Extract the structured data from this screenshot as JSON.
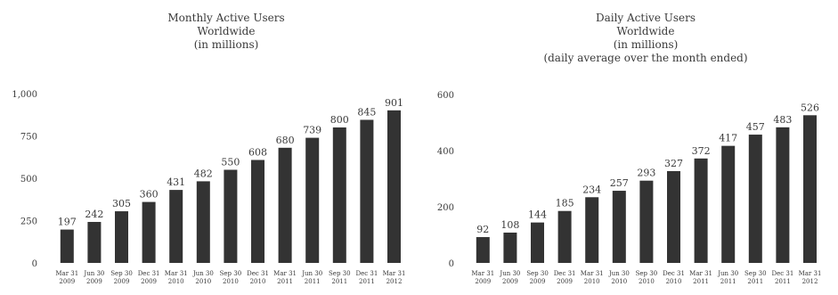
{
  "chart_data": [
    {
      "type": "bar",
      "title": [
        "Monthly Active Users",
        "Worldwide",
        "(in millions)"
      ],
      "categories": [
        [
          "Mar 31",
          "2009"
        ],
        [
          "Jun 30",
          "2009"
        ],
        [
          "Sep 30",
          "2009"
        ],
        [
          "Dec 31",
          "2009"
        ],
        [
          "Mar 31",
          "2010"
        ],
        [
          "Jun 30",
          "2010"
        ],
        [
          "Sep 30",
          "2010"
        ],
        [
          "Dec 31",
          "2010"
        ],
        [
          "Mar 31",
          "2011"
        ],
        [
          "Jun 30",
          "2011"
        ],
        [
          "Sep 30",
          "2011"
        ],
        [
          "Dec 31",
          "2011"
        ],
        [
          "Mar 31",
          "2012"
        ]
      ],
      "values": [
        197,
        242,
        305,
        360,
        431,
        482,
        550,
        608,
        680,
        739,
        800,
        845,
        901
      ],
      "value_labels": [
        "197",
        "242",
        "305",
        "360",
        "431",
        "482",
        "550",
        "608",
        "680",
        "739",
        "800",
        "845",
        "901"
      ],
      "yticks": [
        0,
        250,
        500,
        750,
        1000
      ],
      "ytick_labels": [
        "0",
        "250",
        "500",
        "750",
        "1,000"
      ],
      "ylim": [
        0,
        1000
      ],
      "bar_color": "#333333"
    },
    {
      "type": "bar",
      "title": [
        "Daily Active Users",
        "Worldwide",
        "(in millions)",
        "(daily average over the month ended)"
      ],
      "categories": [
        [
          "Mar 31",
          "2009"
        ],
        [
          "Jun 30",
          "2009"
        ],
        [
          "Sep 30",
          "2009"
        ],
        [
          "Dec 31",
          "2009"
        ],
        [
          "Mar 31",
          "2010"
        ],
        [
          "Jun 30",
          "2010"
        ],
        [
          "Sep 30",
          "2010"
        ],
        [
          "Dec 31",
          "2010"
        ],
        [
          "Mar 31",
          "2011"
        ],
        [
          "Jun 30",
          "2011"
        ],
        [
          "Sep 30",
          "2011"
        ],
        [
          "Dec 31",
          "2011"
        ],
        [
          "Mar 31",
          "2012"
        ]
      ],
      "values": [
        92,
        108,
        144,
        185,
        234,
        257,
        293,
        327,
        372,
        417,
        457,
        483,
        526
      ],
      "value_labels": [
        "92",
        "108",
        "144",
        "185",
        "234",
        "257",
        "293",
        "327",
        "372",
        "417",
        "457",
        "483",
        "526"
      ],
      "yticks": [
        0,
        200,
        400,
        600
      ],
      "ytick_labels": [
        "0",
        "200",
        "400",
        "600"
      ],
      "ylim": [
        0,
        600
      ],
      "bar_color": "#333333"
    }
  ]
}
